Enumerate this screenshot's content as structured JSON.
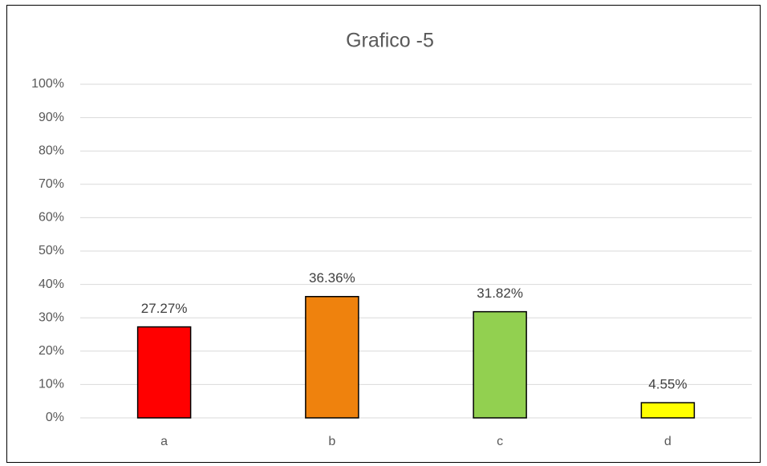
{
  "chart_data": {
    "type": "bar",
    "title": "Grafico -5",
    "categories": [
      "a",
      "b",
      "c",
      "d"
    ],
    "values": [
      27.27,
      36.36,
      31.82,
      4.55
    ],
    "value_labels": [
      "27.27%",
      "36.36%",
      "31.82%",
      "4.55%"
    ],
    "colors": [
      "#ff0000",
      "#ef820d",
      "#92d050",
      "#ffff00"
    ],
    "ylim": [
      0,
      100
    ],
    "yticks": [
      {
        "value": 0,
        "label": "0%"
      },
      {
        "value": 10,
        "label": "10%"
      },
      {
        "value": 20,
        "label": "20%"
      },
      {
        "value": 30,
        "label": "30%"
      },
      {
        "value": 40,
        "label": "40%"
      },
      {
        "value": 50,
        "label": "50%"
      },
      {
        "value": 60,
        "label": "60%"
      },
      {
        "value": 70,
        "label": "70%"
      },
      {
        "value": 80,
        "label": "80%"
      },
      {
        "value": 90,
        "label": "90%"
      },
      {
        "value": 100,
        "label": "100%"
      }
    ],
    "grid": true
  }
}
